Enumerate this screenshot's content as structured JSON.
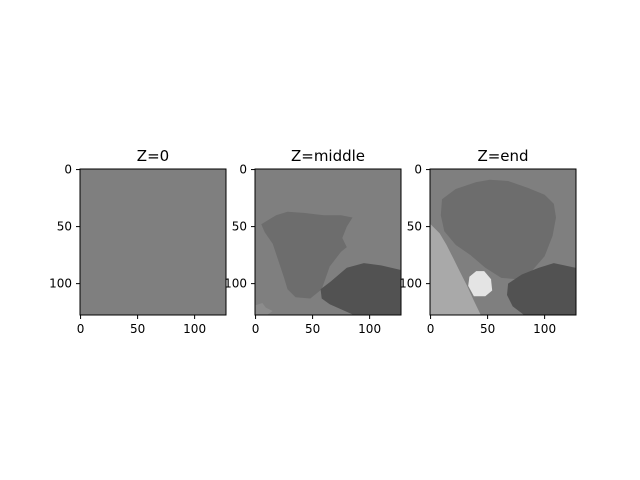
{
  "chart_data": [
    {
      "type": "heatmap",
      "title": "Z=0",
      "x_ticks": [
        "0",
        "50",
        "100"
      ],
      "y_ticks": [
        "0",
        "50",
        "100"
      ],
      "xlim": [
        -0.5,
        127.5
      ],
      "ylim": [
        127.5,
        -0.5
      ],
      "background_gray": "#7f7f7f",
      "regions": []
    },
    {
      "type": "heatmap",
      "title": "Z=middle",
      "x_ticks": [
        "0",
        "50",
        "100"
      ],
      "y_ticks": [
        "0",
        "50",
        "100"
      ],
      "xlim": [
        -0.5,
        127.5
      ],
      "ylim": [
        127.5,
        -0.5
      ],
      "background_gray": "#7f7f7f",
      "regions": [
        {
          "name": "segment-mid-gray",
          "color": "#6d6d6d",
          "points": [
            [
              5,
              48
            ],
            [
              18,
              40
            ],
            [
              28,
              37
            ],
            [
              42,
              38
            ],
            [
              60,
              40
            ],
            [
              75,
              40
            ],
            [
              85,
              42
            ],
            [
              80,
              50
            ],
            [
              76,
              60
            ],
            [
              80,
              68
            ],
            [
              75,
              72
            ],
            [
              65,
              85
            ],
            [
              58,
              105
            ],
            [
              48,
              113
            ],
            [
              35,
              112
            ],
            [
              28,
              105
            ],
            [
              25,
              95
            ],
            [
              20,
              80
            ],
            [
              15,
              65
            ],
            [
              8,
              55
            ]
          ]
        },
        {
          "name": "segment-dark",
          "color": "#525252",
          "points": [
            [
              57,
              105
            ],
            [
              66,
              98
            ],
            [
              80,
              86
            ],
            [
              95,
              82
            ],
            [
              110,
              84
            ],
            [
              127,
              88
            ],
            [
              127,
              127
            ],
            [
              85,
              127
            ],
            [
              65,
              118
            ],
            [
              58,
              113
            ]
          ]
        },
        {
          "name": "segment-light-edge",
          "color": "#8c8c8c",
          "points": [
            [
              0,
              119
            ],
            [
              6,
              117
            ],
            [
              9,
              121
            ],
            [
              15,
              124
            ],
            [
              10,
              127.5
            ],
            [
              0,
              127.5
            ]
          ]
        }
      ]
    },
    {
      "type": "heatmap",
      "title": "Z=end",
      "x_ticks": [
        "0",
        "50",
        "100"
      ],
      "y_ticks": [
        "0",
        "50",
        "100"
      ],
      "xlim": [
        -0.5,
        127.5
      ],
      "ylim": [
        127.5,
        -0.5
      ],
      "background_gray": "#7f7f7f",
      "regions": [
        {
          "name": "segment-light",
          "color": "#a9a9a9",
          "points": [
            [
              0,
              48
            ],
            [
              8,
              56
            ],
            [
              14,
              66
            ],
            [
              20,
              78
            ],
            [
              26,
              90
            ],
            [
              32,
              102
            ],
            [
              38,
              115
            ],
            [
              44,
              127.5
            ],
            [
              0,
              127.5
            ]
          ]
        },
        {
          "name": "segment-mid-gray",
          "color": "#6d6d6d",
          "points": [
            [
              10,
              26
            ],
            [
              22,
              17
            ],
            [
              40,
              11
            ],
            [
              52,
              9
            ],
            [
              68,
              10
            ],
            [
              85,
              16
            ],
            [
              100,
              22
            ],
            [
              108,
              30
            ],
            [
              110,
              42
            ],
            [
              107,
              58
            ],
            [
              100,
              76
            ],
            [
              86,
              92
            ],
            [
              75,
              96
            ],
            [
              62,
              95
            ],
            [
              48,
              86
            ],
            [
              35,
              75
            ],
            [
              22,
              66
            ],
            [
              12,
              54
            ],
            [
              9,
              40
            ]
          ]
        },
        {
          "name": "segment-dark",
          "color": "#525252",
          "points": [
            [
              68,
              100
            ],
            [
              80,
              92
            ],
            [
              95,
              86
            ],
            [
              108,
              82
            ],
            [
              127,
              86
            ],
            [
              127,
              127.5
            ],
            [
              82,
              127.5
            ],
            [
              72,
              120
            ],
            [
              67,
              110
            ]
          ]
        },
        {
          "name": "segment-white",
          "color": "#e4e4e4",
          "points": [
            [
              33,
              102
            ],
            [
              34,
              94
            ],
            [
              40,
              89
            ],
            [
              47,
              89
            ],
            [
              53,
              96
            ],
            [
              54,
              106
            ],
            [
              48,
              111
            ],
            [
              38,
              111
            ]
          ]
        }
      ]
    }
  ]
}
